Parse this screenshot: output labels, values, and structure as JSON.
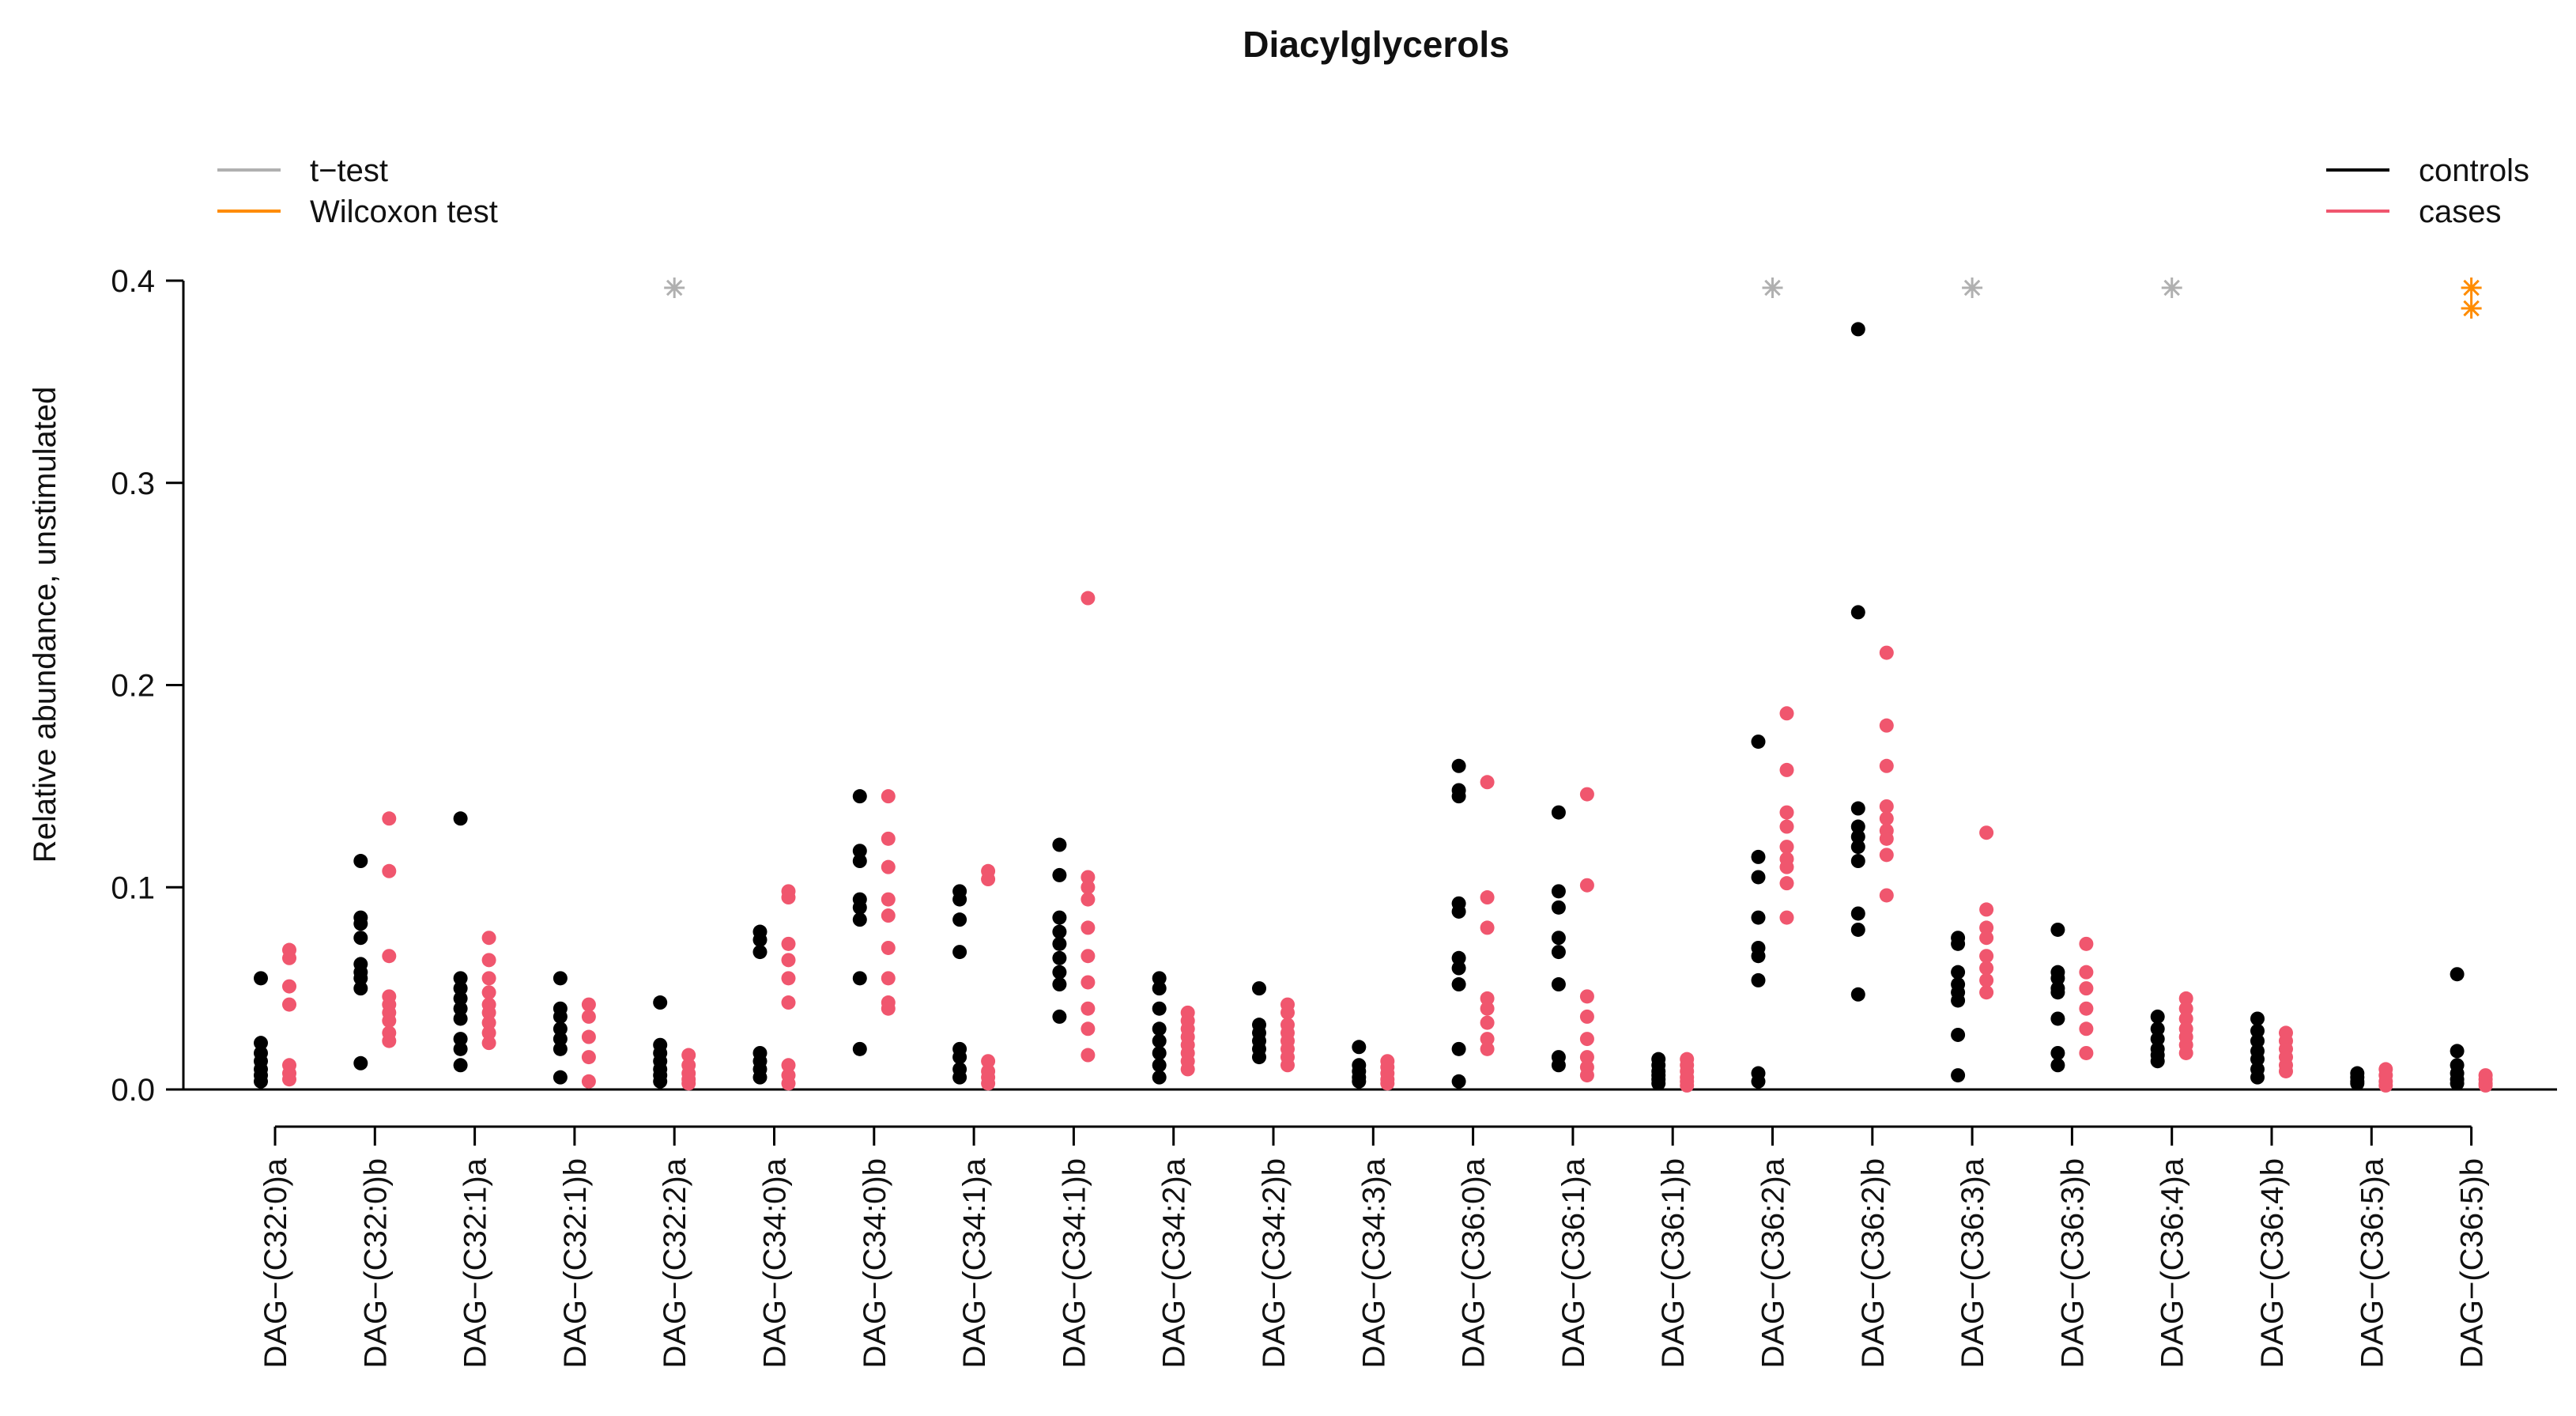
{
  "chart_data": {
    "type": "scatter",
    "title": "Diacylglycerols",
    "xlabel": "",
    "ylabel": "Relative abundance, unstimulated",
    "ylim": [
      0.0,
      0.4
    ],
    "yticks": [
      "0.0",
      "0.1",
      "0.2",
      "0.3",
      "0.4"
    ],
    "ytick_values": [
      0.0,
      0.1,
      0.2,
      0.3,
      0.4
    ],
    "categories": [
      "DAG−(C32:0)a",
      "DAG−(C32:0)b",
      "DAG−(C32:1)a",
      "DAG−(C32:1)b",
      "DAG−(C32:2)a",
      "DAG−(C34:0)a",
      "DAG−(C34:0)b",
      "DAG−(C34:1)a",
      "DAG−(C34:1)b",
      "DAG−(C34:2)a",
      "DAG−(C34:2)b",
      "DAG−(C34:3)a",
      "DAG−(C36:0)a",
      "DAG−(C36:1)a",
      "DAG−(C36:1)b",
      "DAG−(C36:2)a",
      "DAG−(C36:2)b",
      "DAG−(C36:3)a",
      "DAG−(C36:3)b",
      "DAG−(C36:4)a",
      "DAG−(C36:4)b",
      "DAG−(C36:5)a",
      "DAG−(C36:5)b"
    ],
    "series": [
      {
        "name": "controls",
        "color": "#000000",
        "values": [
          [
            0.055,
            0.023,
            0.018,
            0.014,
            0.01,
            0.007,
            0.004
          ],
          [
            0.113,
            0.085,
            0.082,
            0.075,
            0.062,
            0.058,
            0.055,
            0.05,
            0.013
          ],
          [
            0.134,
            0.055,
            0.05,
            0.045,
            0.04,
            0.035,
            0.025,
            0.02,
            0.012
          ],
          [
            0.055,
            0.04,
            0.036,
            0.03,
            0.025,
            0.02,
            0.006
          ],
          [
            0.043,
            0.022,
            0.018,
            0.014,
            0.01,
            0.007,
            0.004
          ],
          [
            0.078,
            0.074,
            0.068,
            0.018,
            0.014,
            0.01,
            0.006
          ],
          [
            0.145,
            0.118,
            0.113,
            0.094,
            0.09,
            0.084,
            0.055,
            0.02
          ],
          [
            0.098,
            0.094,
            0.084,
            0.068,
            0.02,
            0.016,
            0.01,
            0.006
          ],
          [
            0.121,
            0.106,
            0.085,
            0.078,
            0.072,
            0.065,
            0.058,
            0.052,
            0.036
          ],
          [
            0.055,
            0.05,
            0.04,
            0.03,
            0.024,
            0.018,
            0.012,
            0.006
          ],
          [
            0.05,
            0.032,
            0.028,
            0.024,
            0.02,
            0.016
          ],
          [
            0.021,
            0.012,
            0.009,
            0.006,
            0.004
          ],
          [
            0.16,
            0.148,
            0.145,
            0.092,
            0.088,
            0.065,
            0.06,
            0.052,
            0.02,
            0.004
          ],
          [
            0.137,
            0.098,
            0.09,
            0.075,
            0.068,
            0.052,
            0.016,
            0.012
          ],
          [
            0.015,
            0.012,
            0.009,
            0.007,
            0.005,
            0.003
          ],
          [
            0.172,
            0.115,
            0.105,
            0.085,
            0.07,
            0.066,
            0.054,
            0.008,
            0.004
          ],
          [
            0.376,
            0.236,
            0.139,
            0.13,
            0.125,
            0.12,
            0.113,
            0.087,
            0.079,
            0.047
          ],
          [
            0.075,
            0.072,
            0.058,
            0.052,
            0.048,
            0.044,
            0.027,
            0.007
          ],
          [
            0.079,
            0.058,
            0.055,
            0.05,
            0.048,
            0.035,
            0.018,
            0.012
          ],
          [
            0.036,
            0.03,
            0.025,
            0.02,
            0.017,
            0.014
          ],
          [
            0.035,
            0.029,
            0.024,
            0.019,
            0.015,
            0.01,
            0.006
          ],
          [
            0.008,
            0.006,
            0.004,
            0.003
          ],
          [
            0.057,
            0.019,
            0.012,
            0.008,
            0.005,
            0.003
          ]
        ]
      },
      {
        "name": "cases",
        "color": "#f0566e",
        "values": [
          [
            0.069,
            0.065,
            0.051,
            0.042,
            0.012,
            0.008,
            0.005
          ],
          [
            0.134,
            0.108,
            0.066,
            0.046,
            0.042,
            0.038,
            0.034,
            0.028,
            0.024
          ],
          [
            0.075,
            0.064,
            0.055,
            0.048,
            0.042,
            0.038,
            0.033,
            0.028,
            0.023
          ],
          [
            0.042,
            0.036,
            0.026,
            0.016,
            0.004
          ],
          [
            0.017,
            0.012,
            0.008,
            0.005,
            0.003
          ],
          [
            0.098,
            0.095,
            0.072,
            0.064,
            0.055,
            0.043,
            0.012,
            0.007,
            0.003
          ],
          [
            0.145,
            0.124,
            0.11,
            0.094,
            0.086,
            0.07,
            0.055,
            0.043,
            0.04
          ],
          [
            0.108,
            0.104,
            0.014,
            0.009,
            0.006,
            0.003
          ],
          [
            0.243,
            0.105,
            0.1,
            0.094,
            0.08,
            0.066,
            0.053,
            0.04,
            0.03,
            0.017
          ],
          [
            0.038,
            0.034,
            0.03,
            0.026,
            0.022,
            0.018,
            0.014,
            0.01
          ],
          [
            0.042,
            0.038,
            0.032,
            0.028,
            0.024,
            0.02,
            0.016,
            0.012
          ],
          [
            0.014,
            0.011,
            0.008,
            0.005,
            0.003
          ],
          [
            0.152,
            0.095,
            0.08,
            0.045,
            0.04,
            0.033,
            0.025,
            0.02
          ],
          [
            0.146,
            0.101,
            0.046,
            0.036,
            0.025,
            0.016,
            0.011,
            0.007
          ],
          [
            0.015,
            0.012,
            0.009,
            0.006,
            0.004,
            0.002
          ],
          [
            0.186,
            0.158,
            0.137,
            0.13,
            0.12,
            0.114,
            0.11,
            0.102,
            0.085
          ],
          [
            0.216,
            0.18,
            0.16,
            0.14,
            0.134,
            0.128,
            0.124,
            0.116,
            0.096
          ],
          [
            0.127,
            0.089,
            0.08,
            0.075,
            0.066,
            0.06,
            0.054,
            0.048
          ],
          [
            0.072,
            0.058,
            0.05,
            0.04,
            0.03,
            0.018
          ],
          [
            0.045,
            0.04,
            0.035,
            0.03,
            0.026,
            0.022,
            0.018
          ],
          [
            0.028,
            0.024,
            0.02,
            0.016,
            0.012,
            0.009
          ],
          [
            0.01,
            0.007,
            0.004,
            0.002
          ],
          [
            0.007,
            0.005,
            0.003,
            0.002
          ]
        ]
      }
    ],
    "significance": [
      {
        "category": "DAG−(C32:2)a",
        "test": "t-test",
        "count": 1
      },
      {
        "category": "DAG−(C36:2)a",
        "test": "t-test",
        "count": 1
      },
      {
        "category": "DAG−(C36:3)a",
        "test": "t-test",
        "count": 1
      },
      {
        "category": "DAG−(C36:4)a",
        "test": "t-test",
        "count": 1
      },
      {
        "category": "DAG−(C36:5)b",
        "test": "Wilcoxon test",
        "count": 2
      }
    ],
    "legend_tests": [
      {
        "label": "t−test",
        "color": "#b0b0b0"
      },
      {
        "label": "Wilcoxon test",
        "color": "#ff8c00"
      }
    ],
    "legend_groups": [
      {
        "label": "controls",
        "color": "#000000"
      },
      {
        "label": "cases",
        "color": "#f0566e"
      }
    ],
    "legend_placement": "top-left tests, top-right groups",
    "grid": false
  }
}
